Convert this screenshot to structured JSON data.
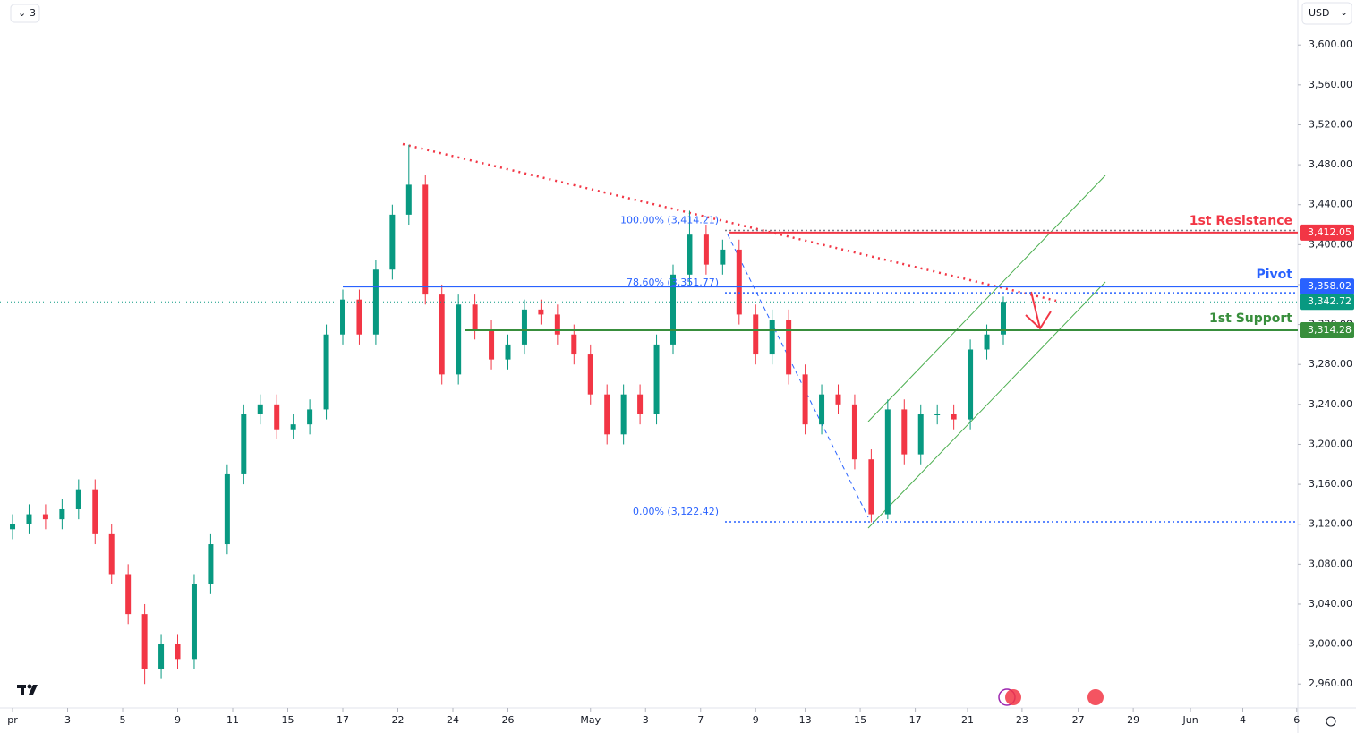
{
  "toolbar": {
    "interval": "3",
    "currency": "USD"
  },
  "chart_data": {
    "type": "candlestick",
    "x": [
      0,
      0.3,
      0.6,
      0.9,
      1.2,
      1.5,
      1.8,
      2.1,
      2.4,
      2.7,
      3,
      3.3,
      3.6,
      3.9,
      4.2,
      4.5,
      4.8,
      5.1,
      5.4,
      5.7,
      6,
      6.3,
      6.6,
      6.9,
      7.2,
      7.5,
      7.8,
      8.1,
      8.4,
      8.7,
      9,
      9.3,
      9.6,
      9.9,
      10.2,
      10.5,
      10.8,
      11.1,
      11.4,
      11.7,
      12,
      12.3,
      12.6,
      12.9,
      13.2,
      13.5,
      13.8,
      14.1,
      14.4,
      14.7,
      15,
      15.3,
      15.6,
      15.9,
      16.2,
      16.5,
      16.8,
      17.1,
      17.4,
      17.7,
      18
    ],
    "open": [
      3115,
      3120,
      3130,
      3125,
      3135,
      3155,
      3110,
      3070,
      3030,
      2975,
      3000,
      2985,
      3060,
      3100,
      3170,
      3230,
      3240,
      3215,
      3220,
      3235,
      3310,
      3345,
      3310,
      3375,
      3430,
      3460,
      3350,
      3270,
      3340,
      3315,
      3285,
      3300,
      3335,
      3330,
      3310,
      3290,
      3250,
      3210,
      3250,
      3230,
      3300,
      3370,
      3410,
      3380,
      3395,
      3330,
      3290,
      3325,
      3270,
      3220,
      3250,
      3240,
      3185,
      3130,
      3235,
      3190,
      3230,
      3230,
      3225,
      3295,
      3310
    ],
    "high": [
      3130,
      3140,
      3140,
      3145,
      3165,
      3165,
      3120,
      3080,
      3040,
      3010,
      3010,
      3070,
      3110,
      3180,
      3240,
      3250,
      3250,
      3230,
      3245,
      3320,
      3355,
      3355,
      3385,
      3440,
      3500,
      3470,
      3360,
      3350,
      3350,
      3325,
      3310,
      3345,
      3345,
      3340,
      3320,
      3300,
      3260,
      3260,
      3260,
      3310,
      3380,
      3434,
      3420,
      3405,
      3405,
      3340,
      3335,
      3335,
      3280,
      3260,
      3260,
      3250,
      3195,
      3245,
      3245,
      3240,
      3240,
      3240,
      3305,
      3320,
      3348
    ],
    "low": [
      3105,
      3110,
      3115,
      3115,
      3125,
      3100,
      3060,
      3020,
      2960,
      2965,
      2975,
      2975,
      3050,
      3090,
      3160,
      3220,
      3205,
      3205,
      3210,
      3225,
      3300,
      3300,
      3300,
      3365,
      3420,
      3340,
      3260,
      3260,
      3305,
      3275,
      3275,
      3290,
      3320,
      3300,
      3280,
      3240,
      3200,
      3200,
      3220,
      3220,
      3290,
      3360,
      3370,
      3370,
      3320,
      3280,
      3280,
      3260,
      3210,
      3210,
      3230,
      3175,
      3122,
      3125,
      3180,
      3180,
      3220,
      3215,
      3215,
      3285,
      3300
    ],
    "close": [
      3120,
      3130,
      3125,
      3135,
      3155,
      3110,
      3070,
      3030,
      2975,
      3000,
      2985,
      3060,
      3100,
      3170,
      3230,
      3240,
      3215,
      3220,
      3235,
      3310,
      3345,
      3310,
      3375,
      3430,
      3460,
      3350,
      3270,
      3340,
      3315,
      3285,
      3300,
      3335,
      3330,
      3310,
      3290,
      3250,
      3210,
      3250,
      3230,
      3300,
      3370,
      3410,
      3380,
      3395,
      3330,
      3290,
      3325,
      3270,
      3220,
      3250,
      3240,
      3185,
      3130,
      3235,
      3190,
      3230,
      3230,
      3225,
      3295,
      3310,
      3342.72
    ],
    "up_color": "#089981",
    "down_color": "#f23645",
    "xlim": [
      -0.228,
      23.35
    ],
    "xticks": [
      {
        "value": 0,
        "label": "pr"
      },
      {
        "value": 1,
        "label": "3"
      },
      {
        "value": 2,
        "label": "5"
      },
      {
        "value": 3,
        "label": "9"
      },
      {
        "value": 4,
        "label": "11"
      },
      {
        "value": 5,
        "label": "15"
      },
      {
        "value": 6,
        "label": "17"
      },
      {
        "value": 7,
        "label": "22"
      },
      {
        "value": 8,
        "label": "24"
      },
      {
        "value": 9,
        "label": "26"
      },
      {
        "value": 10.5,
        "label": "May"
      },
      {
        "value": 11.5,
        "label": "3"
      },
      {
        "value": 12.5,
        "label": "7"
      },
      {
        "value": 13.5,
        "label": "9"
      },
      {
        "value": 14.4,
        "label": "13"
      },
      {
        "value": 15.4,
        "label": "15"
      },
      {
        "value": 16.4,
        "label": "17"
      },
      {
        "value": 17.35,
        "label": "21"
      },
      {
        "value": 18.34,
        "label": "23"
      },
      {
        "value": 19.36,
        "label": "27"
      },
      {
        "value": 20.36,
        "label": "29"
      },
      {
        "value": 21.4,
        "label": "Jun"
      },
      {
        "value": 22.35,
        "label": "4"
      },
      {
        "value": 23.33,
        "label": "6"
      }
    ],
    "ylim": [
      2936,
      3645
    ],
    "yticks": [
      {
        "value": 2960,
        "label": "2,960.00"
      },
      {
        "value": 3000,
        "label": "3,000.00"
      },
      {
        "value": 3040,
        "label": "3,040.00"
      },
      {
        "value": 3080,
        "label": "3,080.00"
      },
      {
        "value": 3120,
        "label": "3,120.00"
      },
      {
        "value": 3160,
        "label": "3,160.00"
      },
      {
        "value": 3200,
        "label": "3,200.00"
      },
      {
        "value": 3240,
        "label": "3,240.00"
      },
      {
        "value": 3280,
        "label": "3,280.00"
      },
      {
        "value": 3320,
        "label": "3,320.00"
      },
      {
        "value": 3360,
        "label": "3,360.00"
      },
      {
        "value": 3400,
        "label": "3,400.00"
      },
      {
        "value": 3440,
        "label": "3,440.00"
      },
      {
        "value": 3480,
        "label": "3,480.00"
      },
      {
        "value": 3520,
        "label": "3,520.00"
      },
      {
        "value": 3560,
        "label": "3,560.00"
      },
      {
        "value": 3600,
        "label": "3,600.00"
      }
    ],
    "levels": [
      {
        "name": "1st Resistance",
        "value": 3412.05,
        "label": "3,412.05",
        "color": "#f23645"
      },
      {
        "name": "Pivot",
        "value": 3358.02,
        "label": "3,358.02",
        "color": "#2962ff"
      },
      {
        "name": "1st Support",
        "value": 3314.28,
        "label": "3,314.28",
        "color": "#388e3c"
      }
    ],
    "last_price": {
      "value": 3342.72,
      "label": "3,342.72",
      "color": "#089981"
    },
    "fib_levels": [
      {
        "value": 3414.21,
        "label": "100.00% (3,414.21)"
      },
      {
        "value": 3351.77,
        "label": "78.60% (3,351.77)"
      },
      {
        "value": 3122.42,
        "label": "0.00% (3,122.42)"
      }
    ]
  }
}
